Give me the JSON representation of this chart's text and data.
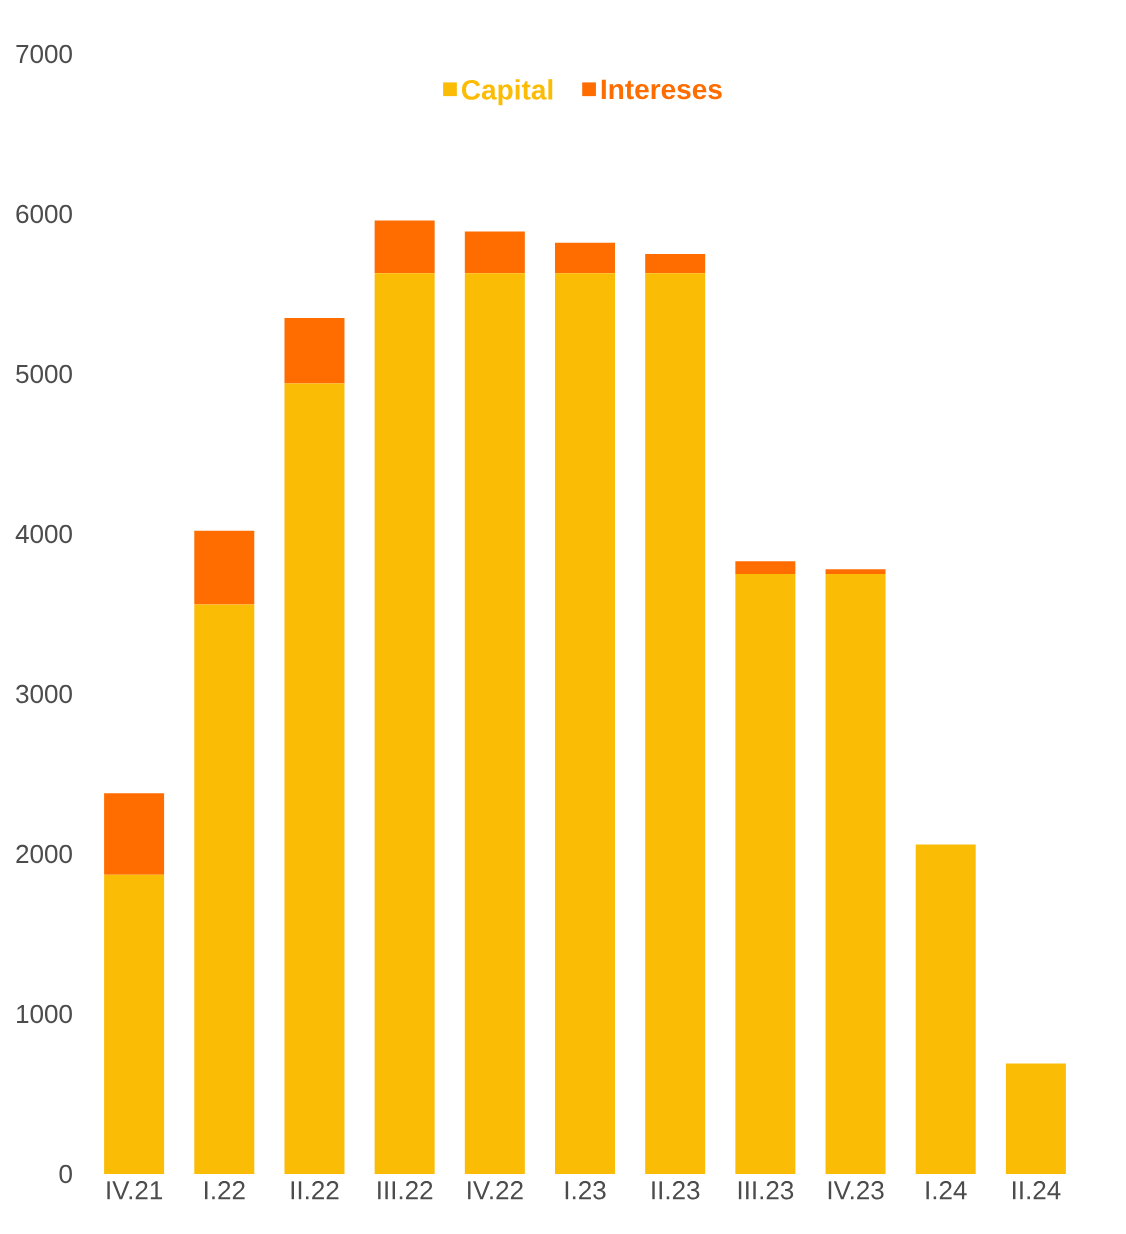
{
  "chart_data": {
    "type": "bar",
    "stacked": true,
    "categories": [
      "IV.21",
      "I.22",
      "II.22",
      "III.22",
      "IV.22",
      "I.23",
      "II.23",
      "III.23",
      "IV.23",
      "I.24",
      "II.24"
    ],
    "series": [
      {
        "name": "Capital",
        "color": "#fbbc05",
        "values": [
          1870,
          3560,
          4940,
          5630,
          5630,
          5630,
          5630,
          3750,
          3750,
          2060,
          690
        ]
      },
      {
        "name": "Intereses",
        "color": "#ff6d00",
        "values": [
          510,
          460,
          410,
          330,
          260,
          190,
          120,
          80,
          30,
          0,
          0
        ]
      }
    ],
    "ylim": [
      0,
      7000
    ],
    "yticks": [
      0,
      1000,
      2000,
      3000,
      4000,
      5000,
      6000,
      7000
    ],
    "legend": "top",
    "grid": false
  }
}
